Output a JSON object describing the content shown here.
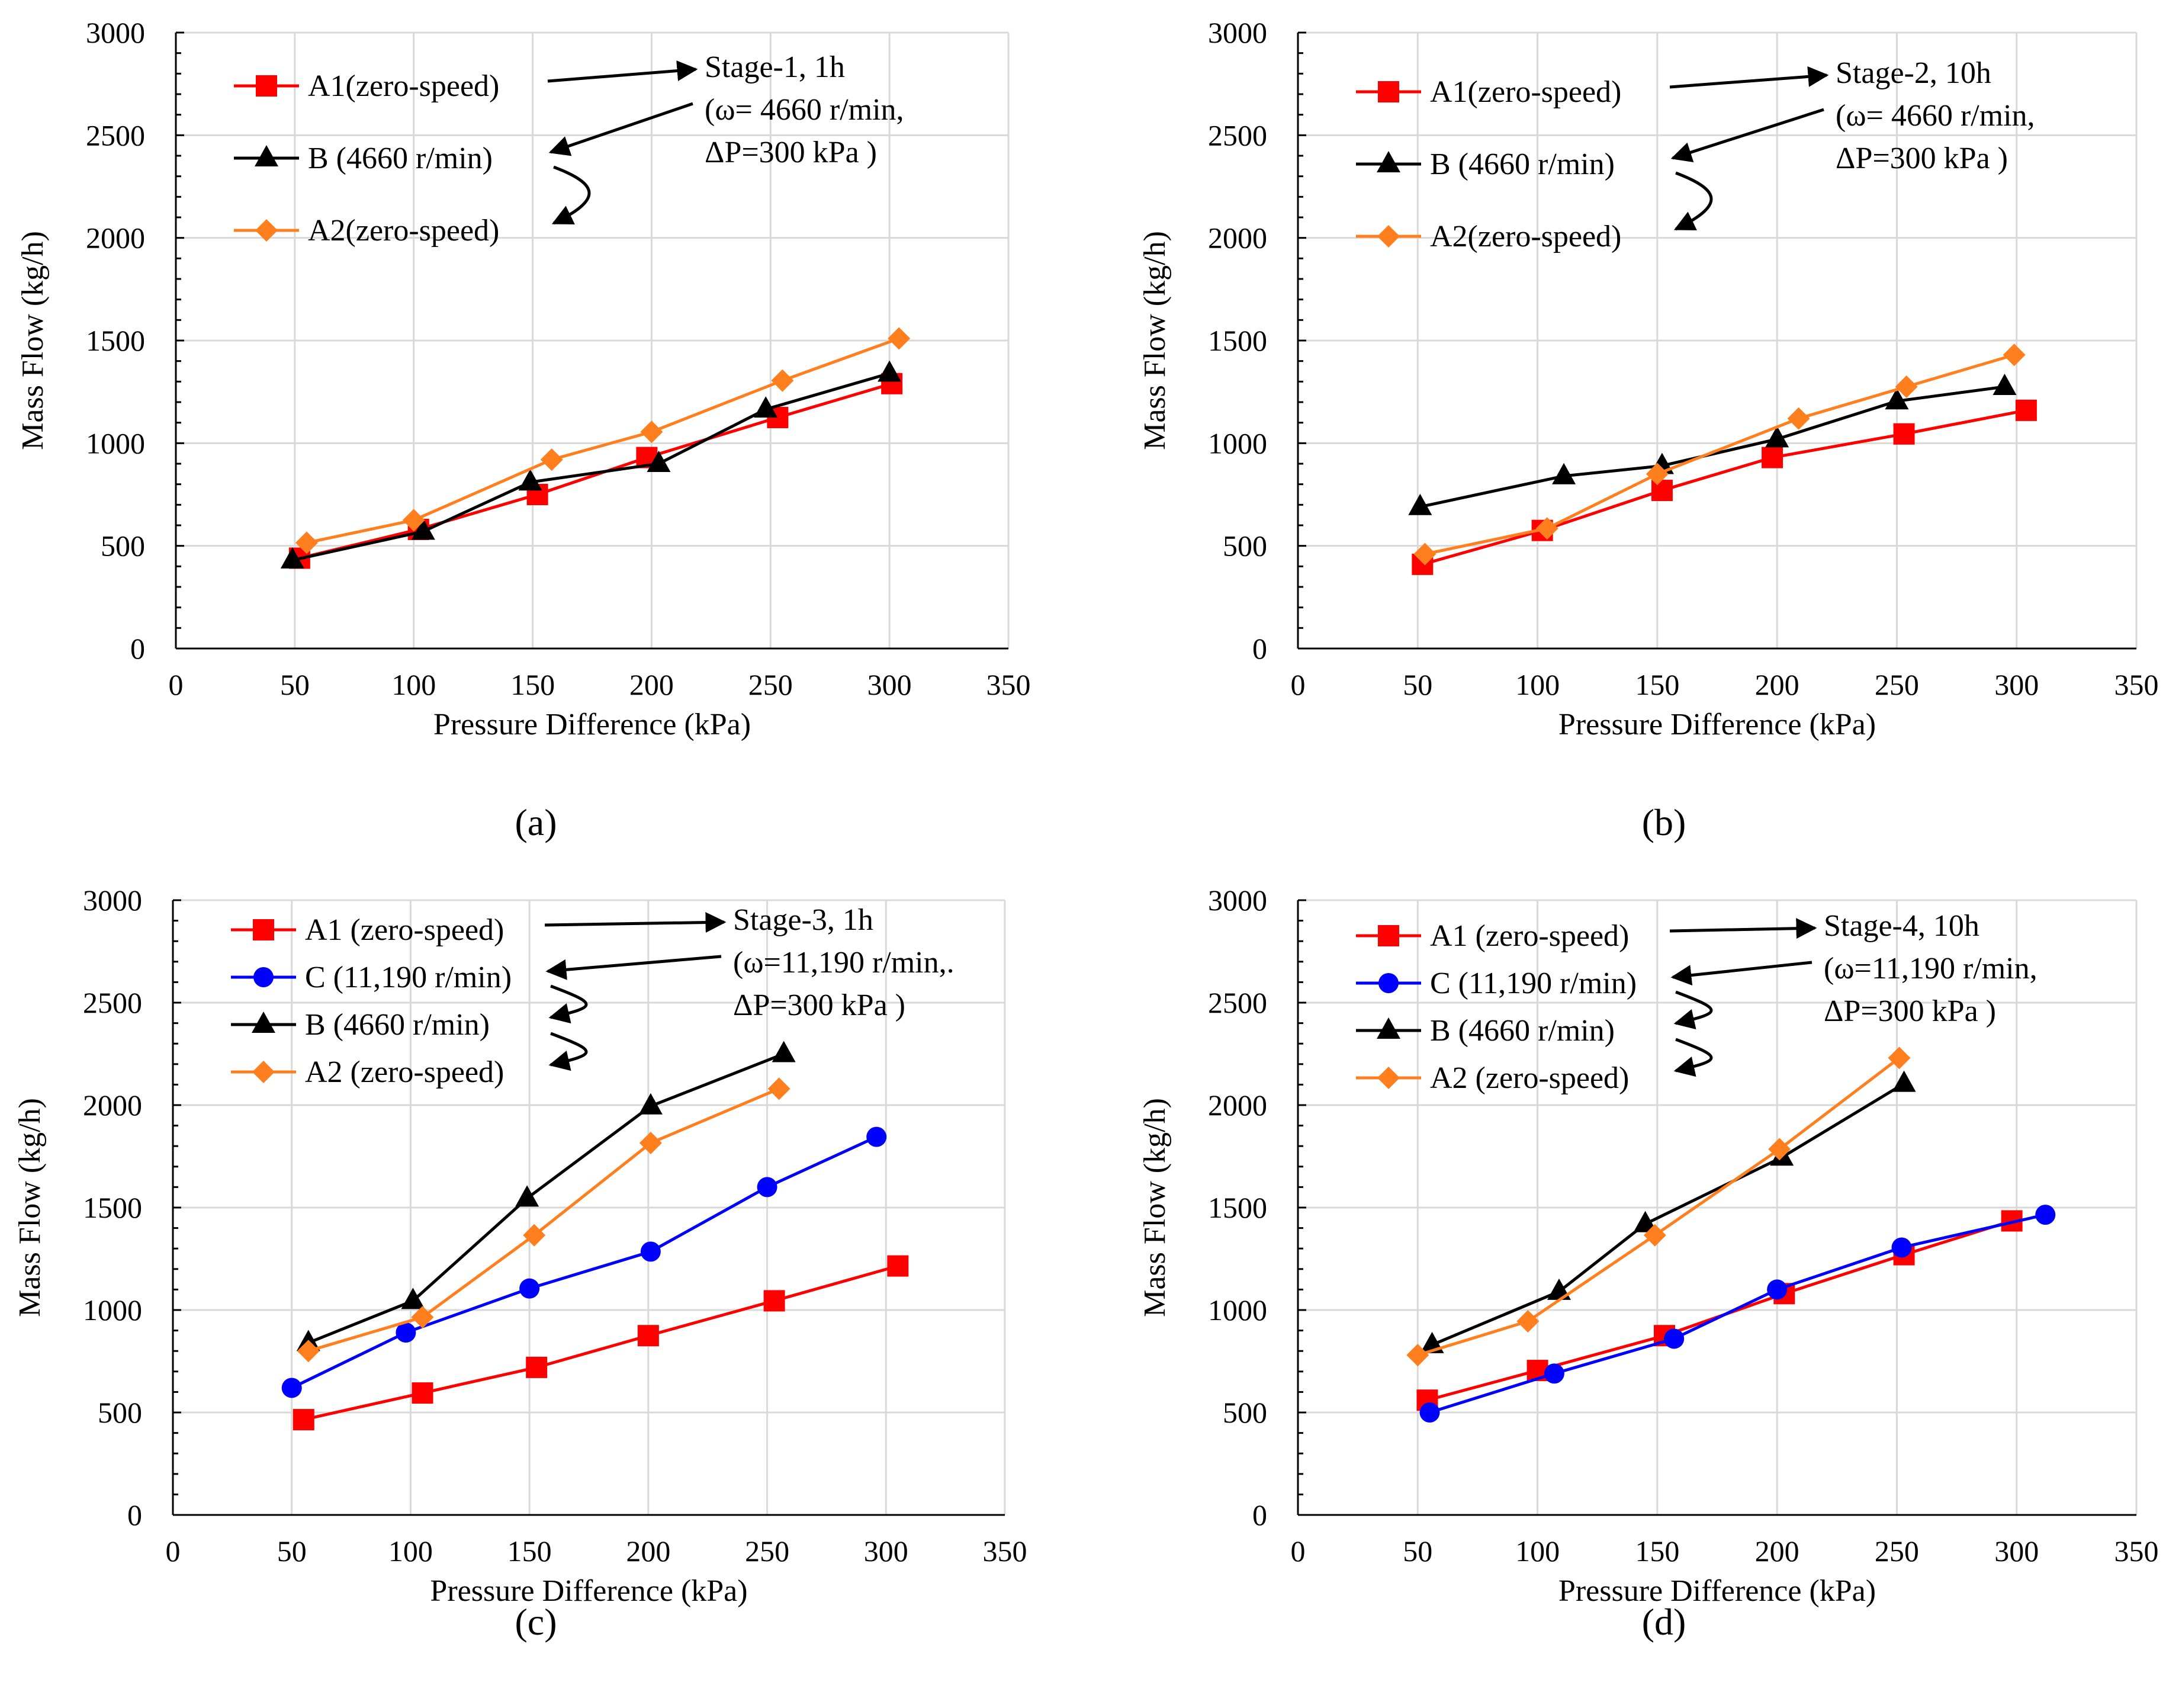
{
  "figure": {
    "colors": {
      "A1": "#ff0000",
      "A2": "#ff7f1e",
      "B": "#000000",
      "C": "#0000ff"
    }
  },
  "chart_data": [
    {
      "type": "line",
      "panel_label": "(a)",
      "xlabel": "Pressure Difference (kPa)",
      "ylabel": "Mass Flow (kg/h)",
      "xlim": [
        0,
        350
      ],
      "ylim": [
        0,
        3000
      ],
      "xticks": [
        0,
        50,
        100,
        150,
        200,
        250,
        300,
        350
      ],
      "yticks": [
        0,
        500,
        1000,
        1500,
        2000,
        2500,
        3000
      ],
      "grid": true,
      "annotation": [
        "Stage-1, 1h",
        "(ω= 4660 r/min,",
        "ΔP=300 kPa )"
      ],
      "series": [
        {
          "key": "A1",
          "name": "A1(zero-speed)",
          "marker": "square",
          "x": [
            52,
            102,
            152,
            198,
            253,
            301
          ],
          "y": [
            440,
            580,
            750,
            930,
            1125,
            1290
          ]
        },
        {
          "key": "B",
          "name": "B  (4660 r/min)",
          "marker": "triangle",
          "x": [
            49,
            104,
            149,
            203,
            248,
            300
          ],
          "y": [
            430,
            570,
            810,
            900,
            1165,
            1340
          ]
        },
        {
          "key": "A2",
          "name": "A2(zero-speed)",
          "marker": "diamond",
          "x": [
            55,
            100,
            158,
            200,
            255,
            304
          ],
          "y": [
            515,
            625,
            920,
            1055,
            1305,
            1510
          ]
        }
      ]
    },
    {
      "type": "line",
      "panel_label": "(b)",
      "xlabel": "Pressure Difference (kPa)",
      "ylabel": "Mass Flow (kg/h)",
      "xlim": [
        0,
        350
      ],
      "ylim": [
        0,
        3000
      ],
      "xticks": [
        0,
        50,
        100,
        150,
        200,
        250,
        300,
        350
      ],
      "yticks": [
        0,
        500,
        1000,
        1500,
        2000,
        2500,
        3000
      ],
      "grid": true,
      "annotation": [
        "Stage-2, 10h",
        "(ω= 4660 r/min,",
        "ΔP=300 kPa )"
      ],
      "series": [
        {
          "key": "A1",
          "name": "A1(zero-speed)",
          "marker": "square",
          "x": [
            52,
            102,
            152,
            198,
            253,
            304
          ],
          "y": [
            410,
            575,
            770,
            930,
            1045,
            1160
          ]
        },
        {
          "key": "B",
          "name": "B  (4660 r/min)",
          "marker": "triangle",
          "x": [
            51,
            111,
            152,
            200,
            250,
            295
          ],
          "y": [
            690,
            840,
            890,
            1020,
            1205,
            1275
          ]
        },
        {
          "key": "A2",
          "name": "A2(zero-speed)",
          "marker": "diamond",
          "x": [
            53,
            104,
            150,
            209,
            254,
            299
          ],
          "y": [
            460,
            585,
            850,
            1120,
            1275,
            1430
          ]
        }
      ]
    },
    {
      "type": "line",
      "panel_label": "(c)",
      "xlabel": "Pressure Difference (kPa)",
      "ylabel": "Mass Flow (kg/h)",
      "xlim": [
        0,
        350
      ],
      "ylim": [
        0,
        3000
      ],
      "xticks": [
        0,
        50,
        100,
        150,
        200,
        250,
        300,
        350
      ],
      "yticks": [
        0,
        500,
        1000,
        1500,
        2000,
        2500,
        3000
      ],
      "grid": true,
      "annotation": [
        "Stage-3, 1h",
        "(ω=11,190 r/min,.",
        "ΔP=300 kPa )"
      ],
      "series": [
        {
          "key": "A1",
          "name": "A1  (zero-speed)",
          "marker": "square",
          "x": [
            55,
            105,
            153,
            200,
            253,
            305
          ],
          "y": [
            465,
            595,
            720,
            875,
            1045,
            1215
          ]
        },
        {
          "key": "C",
          "name": "C (11,190 r/min)",
          "marker": "circle",
          "x": [
            50,
            98,
            150,
            201,
            250,
            296
          ],
          "y": [
            620,
            890,
            1105,
            1285,
            1600,
            1845
          ]
        },
        {
          "key": "B",
          "name": "B    (4660 r/min)",
          "marker": "triangle",
          "x": [
            57,
            101,
            149,
            201,
            257
          ],
          "y": [
            840,
            1045,
            1545,
            1995,
            2250
          ]
        },
        {
          "key": "A2",
          "name": "A2  (zero-speed)",
          "marker": "diamond",
          "x": [
            57,
            105,
            152,
            201,
            255
          ],
          "y": [
            800,
            965,
            1365,
            1815,
            2080
          ]
        }
      ]
    },
    {
      "type": "line",
      "panel_label": "(d)",
      "xlabel": "Pressure Difference (kPa)",
      "ylabel": "Mass Flow (kg/h)",
      "xlim": [
        0,
        350
      ],
      "ylim": [
        0,
        3000
      ],
      "xticks": [
        0,
        50,
        100,
        150,
        200,
        250,
        300,
        350
      ],
      "yticks": [
        0,
        500,
        1000,
        1500,
        2000,
        2500,
        3000
      ],
      "grid": true,
      "annotation": [
        "Stage-4, 10h",
        "(ω=11,190 r/min,",
        "ΔP=300 kPa )"
      ],
      "series": [
        {
          "key": "A1",
          "name": "A1  (zero-speed)",
          "marker": "square",
          "x": [
            54,
            100,
            153,
            203,
            253,
            298
          ],
          "y": [
            560,
            705,
            875,
            1080,
            1270,
            1435
          ]
        },
        {
          "key": "C",
          "name": "C (11,190 r/min)",
          "marker": "circle",
          "x": [
            55,
            107,
            157,
            200,
            252,
            312
          ],
          "y": [
            500,
            690,
            860,
            1100,
            1305,
            1465
          ]
        },
        {
          "key": "B",
          "name": "B    (4660 r/min)",
          "marker": "triangle",
          "x": [
            56,
            109,
            145,
            202,
            253
          ],
          "y": [
            830,
            1090,
            1420,
            1745,
            2105
          ]
        },
        {
          "key": "A2",
          "name": "A2  (zero-speed)",
          "marker": "diamond",
          "x": [
            50,
            96,
            149,
            201,
            251
          ],
          "y": [
            780,
            945,
            1365,
            1785,
            2230
          ]
        }
      ]
    }
  ]
}
